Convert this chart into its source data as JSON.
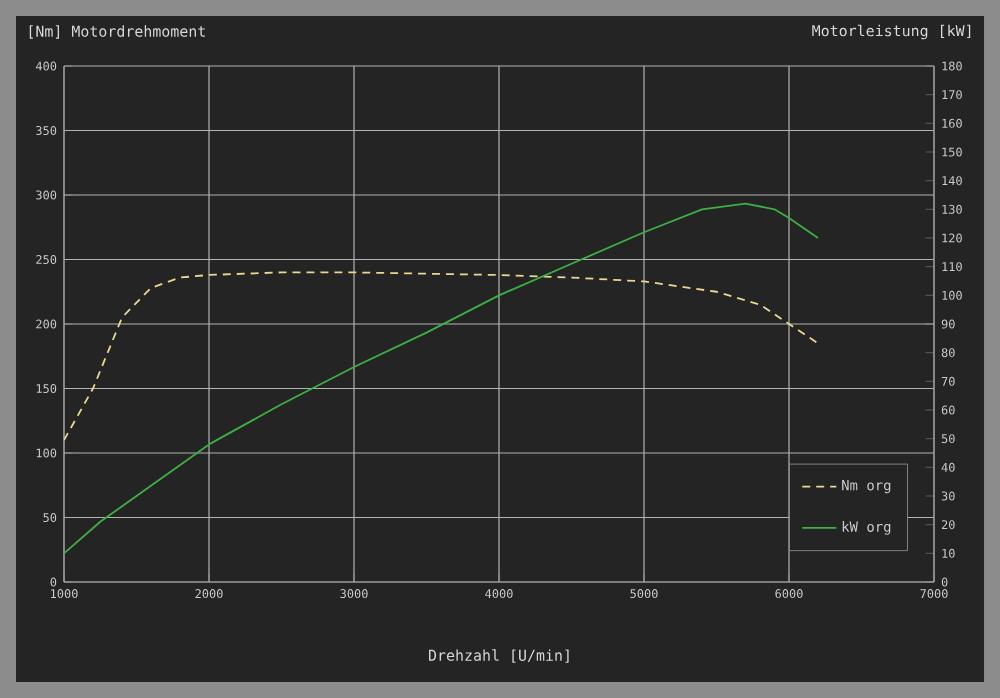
{
  "chart_data": {
    "type": "line",
    "xlabel": "Drehzahl [U/min]",
    "ylabel": "[Nm] Motordrehmoment",
    "y2label": "Motorleistung [kW]",
    "xlim": [
      1000,
      7000
    ],
    "xticks": [
      1000,
      2000,
      3000,
      4000,
      5000,
      6000,
      7000
    ],
    "ylim": [
      0,
      400
    ],
    "yticks": [
      0,
      50,
      100,
      150,
      200,
      250,
      300,
      350,
      400
    ],
    "y2lim": [
      0,
      180
    ],
    "y2ticks": [
      0,
      10,
      20,
      30,
      40,
      50,
      60,
      70,
      80,
      90,
      100,
      110,
      120,
      130,
      140,
      150,
      160,
      170,
      180
    ],
    "grid": true,
    "legend": "bottom right",
    "series": [
      {
        "name": "Nm org",
        "color": "#e8d890",
        "line_style": "dashed",
        "x": [
          1000,
          1200,
          1400,
          1600,
          1800,
          2000,
          2500,
          3000,
          3500,
          4000,
          4500,
          5000,
          5500,
          5800,
          6000,
          6200
        ],
        "values": [
          110,
          150,
          205,
          228,
          236,
          238,
          240,
          240,
          239,
          238,
          236,
          233,
          225,
          215,
          200,
          185
        ]
      },
      {
        "name": "kW org",
        "color": "#3cb043",
        "line_style": "solid",
        "axis": "y2",
        "x": [
          1000,
          1250,
          1500,
          2000,
          2500,
          3000,
          3500,
          4000,
          4500,
          5000,
          5400,
          5700,
          5900,
          6000,
          6200
        ],
        "values": [
          10,
          21,
          30,
          48,
          62,
          75,
          87,
          100,
          111,
          122,
          130,
          132,
          130,
          127,
          120
        ]
      }
    ]
  }
}
